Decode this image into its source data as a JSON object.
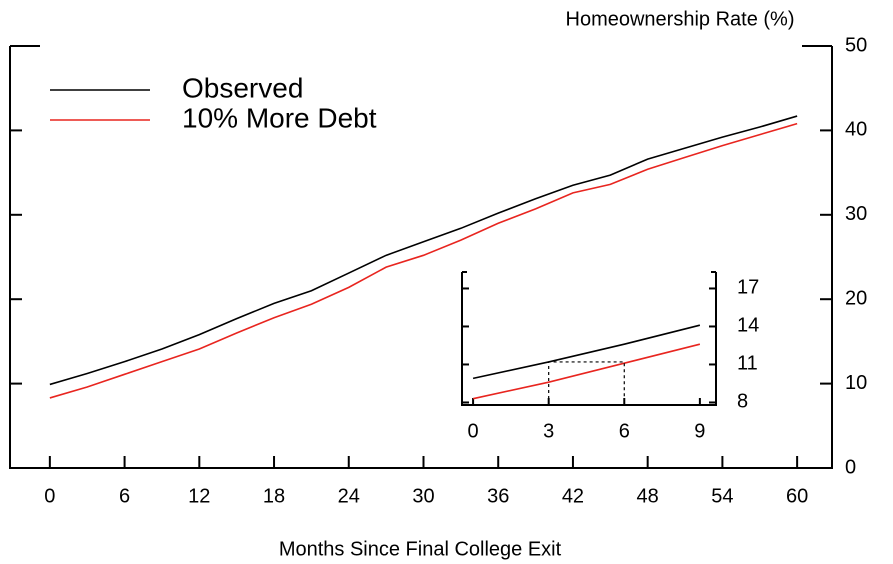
{
  "chart_data": [
    {
      "type": "line",
      "y_label": "Homeownership Rate (%)",
      "x_label": "Months Since Final College Exit",
      "x": [
        0,
        3,
        6,
        9,
        12,
        15,
        18,
        21,
        24,
        27,
        30,
        33,
        36,
        39,
        42,
        45,
        48,
        51,
        54,
        57,
        60
      ],
      "series": [
        {
          "name": "Observed",
          "color": "#000000",
          "values": [
            9.9,
            11.2,
            12.6,
            14.1,
            15.8,
            17.7,
            19.5,
            21.0,
            23.1,
            25.2,
            26.8,
            28.4,
            30.2,
            31.9,
            33.5,
            34.7,
            36.6,
            37.9,
            39.2,
            40.4,
            41.7
          ]
        },
        {
          "name": "10% More Debt",
          "color": "#e8251f",
          "values": [
            8.3,
            9.6,
            11.1,
            12.6,
            14.1,
            16.0,
            17.8,
            19.4,
            21.4,
            23.8,
            25.2,
            27.0,
            29.0,
            30.7,
            32.6,
            33.6,
            35.4,
            36.8,
            38.2,
            39.5,
            40.8
          ]
        }
      ],
      "xlim": [
        -3.2,
        62.8
      ],
      "xticks": [
        0,
        6,
        12,
        18,
        24,
        30,
        36,
        42,
        48,
        54,
        60
      ],
      "ylim": [
        0,
        50
      ],
      "yticks": [
        0,
        10,
        20,
        30,
        40,
        50
      ],
      "legend": "upper-left"
    },
    {
      "type": "line",
      "x": [
        0,
        3,
        6,
        9
      ],
      "series": [
        {
          "color": "#000000",
          "values": [
            9.9,
            11.2,
            12.6,
            14.1
          ]
        },
        {
          "color": "#e8251f",
          "values": [
            8.3,
            9.6,
            11.1,
            12.6
          ]
        }
      ],
      "xlim": [
        -0.44,
        9.64
      ],
      "xticks": [
        0,
        3,
        6,
        9
      ],
      "ylim": [
        7.8,
        18.3
      ],
      "yticks": [
        8,
        11,
        14,
        17
      ]
    }
  ]
}
